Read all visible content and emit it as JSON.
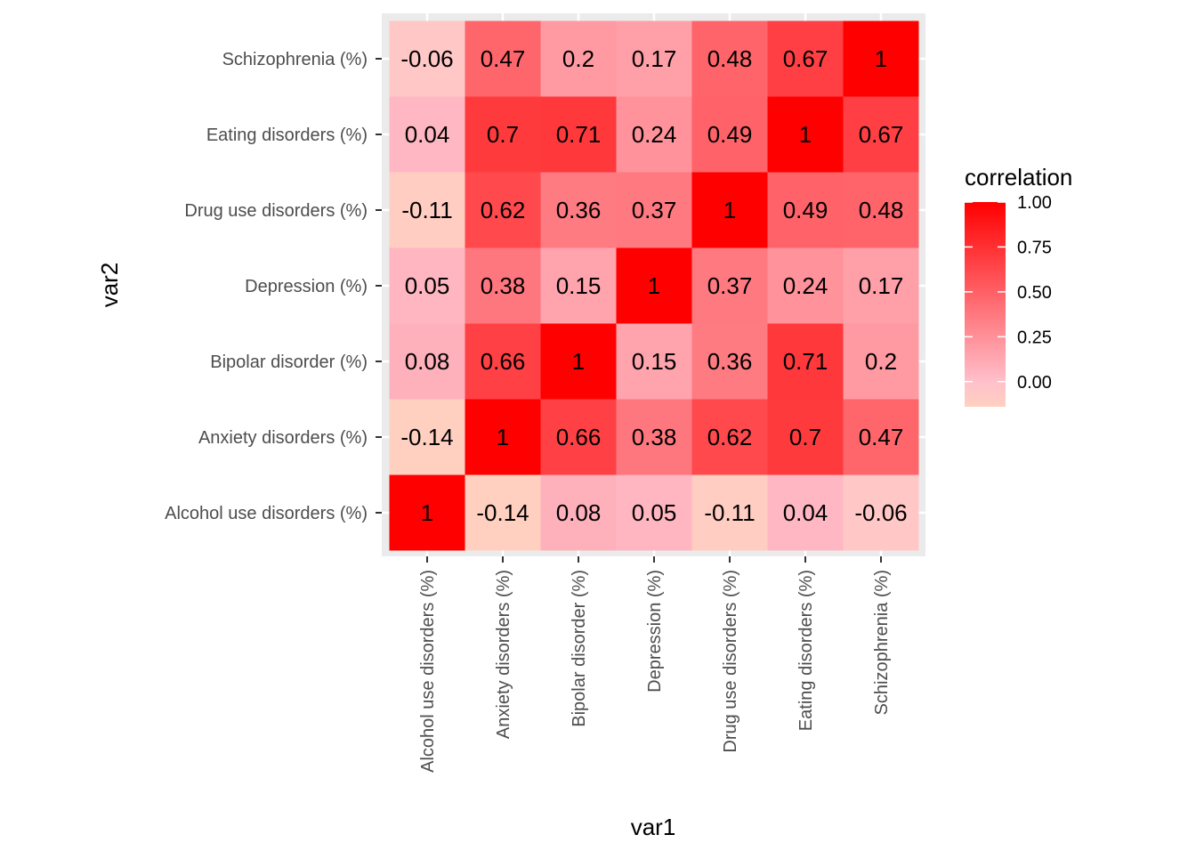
{
  "chart_data": {
    "type": "heatmap",
    "xlabel": "var1",
    "ylabel": "var2",
    "x_categories": [
      "Alcohol use disorders (%)",
      "Anxiety disorders (%)",
      "Bipolar disorder (%)",
      "Depression (%)",
      "Drug use disorders (%)",
      "Eating disorders (%)",
      "Schizophrenia (%)"
    ],
    "y_categories": [
      "Alcohol use disorders (%)",
      "Anxiety disorders (%)",
      "Bipolar disorder (%)",
      "Depression (%)",
      "Drug use disorders (%)",
      "Eating disorders (%)",
      "Schizophrenia (%)"
    ],
    "values": [
      [
        1,
        -0.14,
        0.08,
        0.05,
        -0.11,
        0.04,
        -0.06
      ],
      [
        -0.14,
        1,
        0.66,
        0.38,
        0.62,
        0.7,
        0.47
      ],
      [
        0.08,
        0.66,
        1,
        0.15,
        0.36,
        0.71,
        0.2
      ],
      [
        0.05,
        0.38,
        0.15,
        1,
        0.37,
        0.24,
        0.17
      ],
      [
        -0.11,
        0.62,
        0.36,
        0.37,
        1,
        0.49,
        0.48
      ],
      [
        0.04,
        0.7,
        0.71,
        0.24,
        0.49,
        1,
        0.67
      ],
      [
        -0.06,
        0.47,
        0.2,
        0.17,
        0.48,
        0.67,
        1
      ]
    ],
    "legend": {
      "title": "correlation",
      "ticks": [
        1.0,
        0.75,
        0.5,
        0.25,
        0.0
      ],
      "tick_labels": [
        "1.00",
        "0.75",
        "0.50",
        "0.25",
        "0.00"
      ],
      "range": [
        -0.14,
        1.0
      ],
      "placement": "right"
    },
    "grid": true,
    "colors": {
      "low": "#ffd0c0",
      "mid": "#ffc0cb",
      "high": "#ff0000",
      "panel_background": "#ebebeb",
      "grid_line": "#ffffff"
    }
  }
}
